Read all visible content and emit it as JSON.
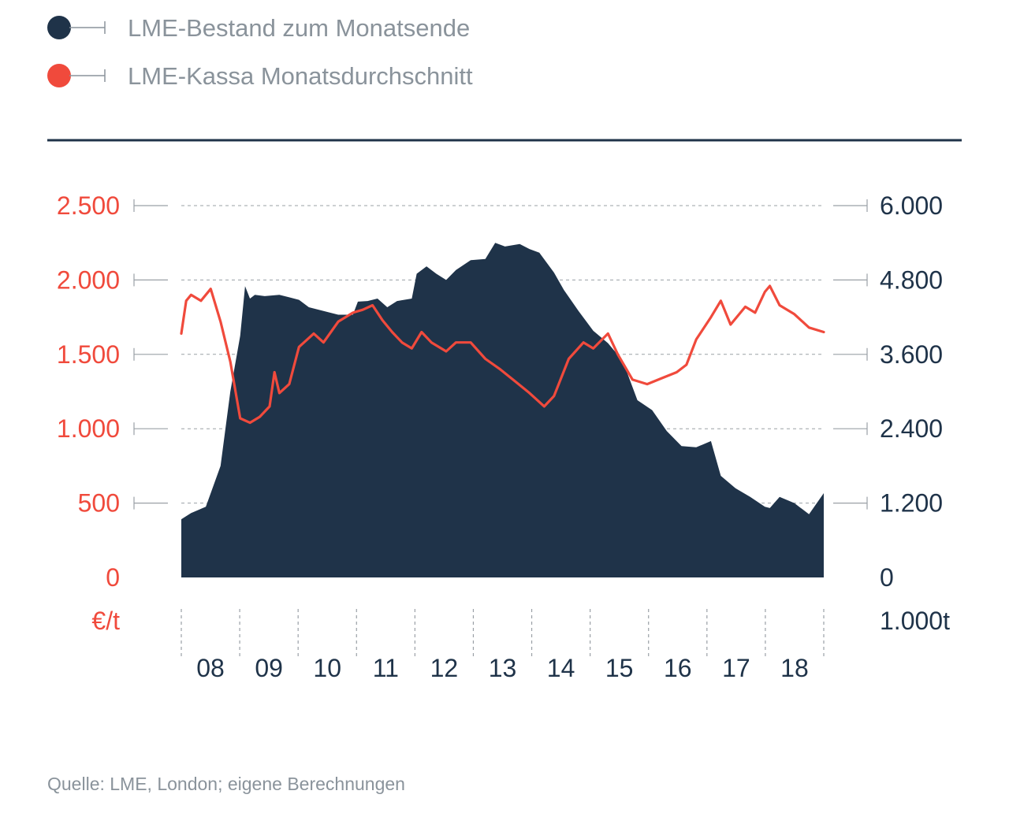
{
  "legend": [
    {
      "label": "LME-Bestand zum Monatsende",
      "color": "#1f3349"
    },
    {
      "label": "LME-Kassa Monatsdurchschnitt",
      "color": "#f04a3c"
    }
  ],
  "source": "Quelle: LME, London; eigene Berechnungen",
  "chart_data": {
    "type": "area",
    "title": "",
    "x_start": "2008-01",
    "x_end": "2018-12",
    "grid": true,
    "legend_position": "top-left",
    "y_left": {
      "unit_label": "€/t",
      "range": [
        0,
        2500
      ],
      "ticks": [
        {
          "value": 0,
          "label": "0"
        },
        {
          "value": 500,
          "label": "500"
        },
        {
          "value": 1000,
          "label": "1.000"
        },
        {
          "value": 1500,
          "label": "1.500"
        },
        {
          "value": 2000,
          "label": "2.000"
        },
        {
          "value": 2500,
          "label": "2.500"
        }
      ]
    },
    "y_right": {
      "unit_label": "1.000t",
      "range": [
        0,
        6000
      ],
      "ticks": [
        {
          "value": 0,
          "label": "0"
        },
        {
          "value": 1200,
          "label": "1.200"
        },
        {
          "value": 2400,
          "label": "2.400"
        },
        {
          "value": 3600,
          "label": "3.600"
        },
        {
          "value": 4800,
          "label": "4.800"
        },
        {
          "value": 6000,
          "label": "6.000"
        }
      ]
    },
    "x_categories": [
      "08",
      "09",
      "10",
      "11",
      "12",
      "13",
      "14",
      "15",
      "16",
      "17",
      "18"
    ],
    "series": [
      {
        "name": "LME-Bestand zum Monatsende",
        "type": "area",
        "axis": "right",
        "color": "#1f3349",
        "points": [
          {
            "x": "2008-01",
            "y": 940
          },
          {
            "x": "2008-03",
            "y": 1040
          },
          {
            "x": "2008-06",
            "y": 1140
          },
          {
            "x": "2008-09",
            "y": 1800
          },
          {
            "x": "2008-11",
            "y": 3000
          },
          {
            "x": "2009-01",
            "y": 3900
          },
          {
            "x": "2009-02",
            "y": 4700
          },
          {
            "x": "2009-03",
            "y": 4500
          },
          {
            "x": "2009-04",
            "y": 4560
          },
          {
            "x": "2009-06",
            "y": 4540
          },
          {
            "x": "2009-09",
            "y": 4560
          },
          {
            "x": "2009-11",
            "y": 4520
          },
          {
            "x": "2010-01",
            "y": 4480
          },
          {
            "x": "2010-03",
            "y": 4360
          },
          {
            "x": "2010-06",
            "y": 4300
          },
          {
            "x": "2010-09",
            "y": 4240
          },
          {
            "x": "2010-12",
            "y": 4240
          },
          {
            "x": "2011-01",
            "y": 4450
          },
          {
            "x": "2011-03",
            "y": 4460
          },
          {
            "x": "2011-05",
            "y": 4500
          },
          {
            "x": "2011-07",
            "y": 4360
          },
          {
            "x": "2011-09",
            "y": 4460
          },
          {
            "x": "2011-12",
            "y": 4500
          },
          {
            "x": "2012-01",
            "y": 4900
          },
          {
            "x": "2012-03",
            "y": 5020
          },
          {
            "x": "2012-05",
            "y": 4900
          },
          {
            "x": "2012-07",
            "y": 4800
          },
          {
            "x": "2012-09",
            "y": 4960
          },
          {
            "x": "2012-12",
            "y": 5120
          },
          {
            "x": "2013-03",
            "y": 5140
          },
          {
            "x": "2013-05",
            "y": 5400
          },
          {
            "x": "2013-07",
            "y": 5340
          },
          {
            "x": "2013-10",
            "y": 5380
          },
          {
            "x": "2013-12",
            "y": 5300
          },
          {
            "x": "2014-02",
            "y": 5240
          },
          {
            "x": "2014-05",
            "y": 4920
          },
          {
            "x": "2014-07",
            "y": 4640
          },
          {
            "x": "2014-10",
            "y": 4300
          },
          {
            "x": "2015-01",
            "y": 3980
          },
          {
            "x": "2015-04",
            "y": 3780
          },
          {
            "x": "2015-07",
            "y": 3500
          },
          {
            "x": "2015-10",
            "y": 2860
          },
          {
            "x": "2016-01",
            "y": 2700
          },
          {
            "x": "2016-04",
            "y": 2360
          },
          {
            "x": "2016-07",
            "y": 2120
          },
          {
            "x": "2016-10",
            "y": 2100
          },
          {
            "x": "2017-01",
            "y": 2200
          },
          {
            "x": "2017-03",
            "y": 1640
          },
          {
            "x": "2017-06",
            "y": 1440
          },
          {
            "x": "2017-09",
            "y": 1300
          },
          {
            "x": "2017-12",
            "y": 1140
          },
          {
            "x": "2018-01",
            "y": 1120
          },
          {
            "x": "2018-03",
            "y": 1300
          },
          {
            "x": "2018-06",
            "y": 1200
          },
          {
            "x": "2018-09",
            "y": 1020
          },
          {
            "x": "2018-12",
            "y": 1360
          }
        ]
      },
      {
        "name": "LME-Kassa Monatsdurchschnitt",
        "type": "line",
        "axis": "left",
        "color": "#f04a3c",
        "points": [
          {
            "x": "2008-01",
            "y": 1640
          },
          {
            "x": "2008-02",
            "y": 1860
          },
          {
            "x": "2008-03",
            "y": 1900
          },
          {
            "x": "2008-05",
            "y": 1860
          },
          {
            "x": "2008-07",
            "y": 1940
          },
          {
            "x": "2008-09",
            "y": 1720
          },
          {
            "x": "2008-11",
            "y": 1450
          },
          {
            "x": "2009-01",
            "y": 1070
          },
          {
            "x": "2009-03",
            "y": 1040
          },
          {
            "x": "2009-05",
            "y": 1080
          },
          {
            "x": "2009-07",
            "y": 1150
          },
          {
            "x": "2009-08",
            "y": 1380
          },
          {
            "x": "2009-09",
            "y": 1240
          },
          {
            "x": "2009-11",
            "y": 1300
          },
          {
            "x": "2010-01",
            "y": 1550
          },
          {
            "x": "2010-04",
            "y": 1640
          },
          {
            "x": "2010-06",
            "y": 1580
          },
          {
            "x": "2010-09",
            "y": 1720
          },
          {
            "x": "2010-12",
            "y": 1780
          },
          {
            "x": "2011-02",
            "y": 1800
          },
          {
            "x": "2011-04",
            "y": 1830
          },
          {
            "x": "2011-06",
            "y": 1730
          },
          {
            "x": "2011-08",
            "y": 1650
          },
          {
            "x": "2011-10",
            "y": 1580
          },
          {
            "x": "2011-12",
            "y": 1540
          },
          {
            "x": "2012-02",
            "y": 1650
          },
          {
            "x": "2012-04",
            "y": 1580
          },
          {
            "x": "2012-07",
            "y": 1520
          },
          {
            "x": "2012-09",
            "y": 1580
          },
          {
            "x": "2012-12",
            "y": 1580
          },
          {
            "x": "2013-03",
            "y": 1470
          },
          {
            "x": "2013-06",
            "y": 1400
          },
          {
            "x": "2013-09",
            "y": 1320
          },
          {
            "x": "2013-12",
            "y": 1240
          },
          {
            "x": "2014-03",
            "y": 1150
          },
          {
            "x": "2014-05",
            "y": 1220
          },
          {
            "x": "2014-08",
            "y": 1470
          },
          {
            "x": "2014-11",
            "y": 1580
          },
          {
            "x": "2015-01",
            "y": 1540
          },
          {
            "x": "2015-04",
            "y": 1640
          },
          {
            "x": "2015-06",
            "y": 1500
          },
          {
            "x": "2015-09",
            "y": 1330
          },
          {
            "x": "2015-12",
            "y": 1300
          },
          {
            "x": "2016-03",
            "y": 1340
          },
          {
            "x": "2016-06",
            "y": 1380
          },
          {
            "x": "2016-08",
            "y": 1430
          },
          {
            "x": "2016-10",
            "y": 1600
          },
          {
            "x": "2017-01",
            "y": 1750
          },
          {
            "x": "2017-03",
            "y": 1860
          },
          {
            "x": "2017-05",
            "y": 1700
          },
          {
            "x": "2017-08",
            "y": 1820
          },
          {
            "x": "2017-10",
            "y": 1780
          },
          {
            "x": "2017-12",
            "y": 1920
          },
          {
            "x": "2018-01",
            "y": 1960
          },
          {
            "x": "2018-03",
            "y": 1830
          },
          {
            "x": "2018-06",
            "y": 1770
          },
          {
            "x": "2018-09",
            "y": 1680
          },
          {
            "x": "2018-12",
            "y": 1650
          }
        ]
      }
    ]
  }
}
